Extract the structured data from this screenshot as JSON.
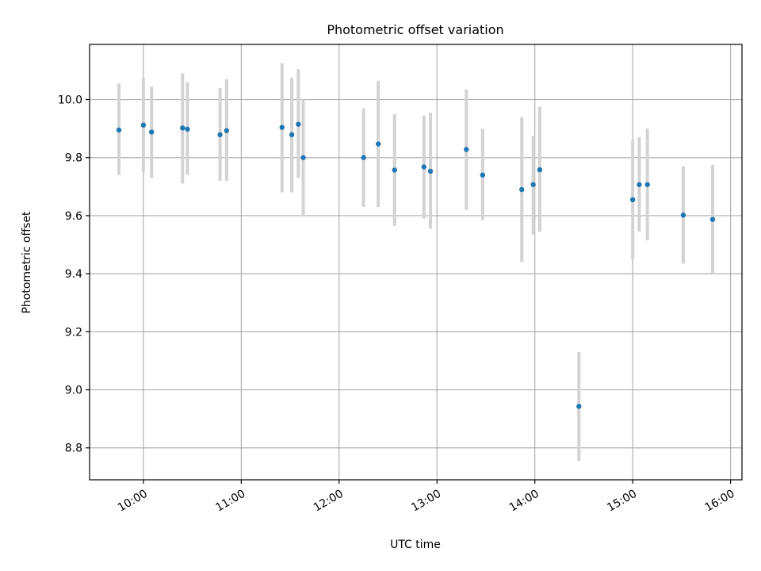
{
  "chart_data": {
    "type": "scatter",
    "title": "Photometric offset variation",
    "xlabel": "UTC time",
    "ylabel": "Photometric offset",
    "grid": true,
    "xlim": [
      "09:27",
      "16:07"
    ],
    "ylim": [
      8.69,
      10.19
    ],
    "x_ticks": [
      "10:00",
      "11:00",
      "12:00",
      "13:00",
      "14:00",
      "15:00",
      "16:00"
    ],
    "y_ticks": [
      8.8,
      9.0,
      9.2,
      9.4,
      9.6,
      9.8,
      10.0
    ],
    "points": [
      {
        "time": "09:45",
        "y": 9.895,
        "lo": 9.74,
        "hi": 10.055
      },
      {
        "time": "10:00",
        "y": 9.912,
        "lo": 9.75,
        "hi": 10.075
      },
      {
        "time": "10:05",
        "y": 9.888,
        "lo": 9.73,
        "hi": 10.045
      },
      {
        "time": "10:24",
        "y": 9.902,
        "lo": 9.71,
        "hi": 10.09
      },
      {
        "time": "10:27",
        "y": 9.898,
        "lo": 9.74,
        "hi": 10.06
      },
      {
        "time": "10:47",
        "y": 9.879,
        "lo": 9.72,
        "hi": 10.04
      },
      {
        "time": "10:51",
        "y": 9.893,
        "lo": 9.72,
        "hi": 10.07
      },
      {
        "time": "11:25",
        "y": 9.904,
        "lo": 9.68,
        "hi": 10.125
      },
      {
        "time": "11:31",
        "y": 9.879,
        "lo": 9.68,
        "hi": 10.075
      },
      {
        "time": "11:35",
        "y": 9.915,
        "lo": 9.73,
        "hi": 10.105
      },
      {
        "time": "11:38",
        "y": 9.8,
        "lo": 9.6,
        "hi": 10.0
      },
      {
        "time": "12:15",
        "y": 9.8,
        "lo": 9.63,
        "hi": 9.97
      },
      {
        "time": "12:24",
        "y": 9.847,
        "lo": 9.63,
        "hi": 10.065
      },
      {
        "time": "12:34",
        "y": 9.757,
        "lo": 9.565,
        "hi": 9.95
      },
      {
        "time": "12:52",
        "y": 9.768,
        "lo": 9.59,
        "hi": 9.945
      },
      {
        "time": "12:56",
        "y": 9.753,
        "lo": 9.555,
        "hi": 9.955
      },
      {
        "time": "13:18",
        "y": 9.828,
        "lo": 9.62,
        "hi": 10.035
      },
      {
        "time": "13:28",
        "y": 9.74,
        "lo": 9.585,
        "hi": 9.9
      },
      {
        "time": "13:52",
        "y": 9.69,
        "lo": 9.44,
        "hi": 9.94
      },
      {
        "time": "13:59",
        "y": 9.707,
        "lo": 9.535,
        "hi": 9.875
      },
      {
        "time": "14:03",
        "y": 9.758,
        "lo": 9.545,
        "hi": 9.975
      },
      {
        "time": "14:27",
        "y": 8.943,
        "lo": 8.755,
        "hi": 9.13
      },
      {
        "time": "15:00",
        "y": 9.655,
        "lo": 9.45,
        "hi": 9.86
      },
      {
        "time": "15:04",
        "y": 9.707,
        "lo": 9.545,
        "hi": 9.87
      },
      {
        "time": "15:09",
        "y": 9.707,
        "lo": 9.515,
        "hi": 9.9
      },
      {
        "time": "15:31",
        "y": 9.602,
        "lo": 9.435,
        "hi": 9.77
      },
      {
        "time": "15:49",
        "y": 9.587,
        "lo": 9.4,
        "hi": 9.775
      }
    ],
    "colors": {
      "point": "#1f77b4",
      "errorbar": "#d3d3d3",
      "grid": "#b0b0b0"
    }
  }
}
